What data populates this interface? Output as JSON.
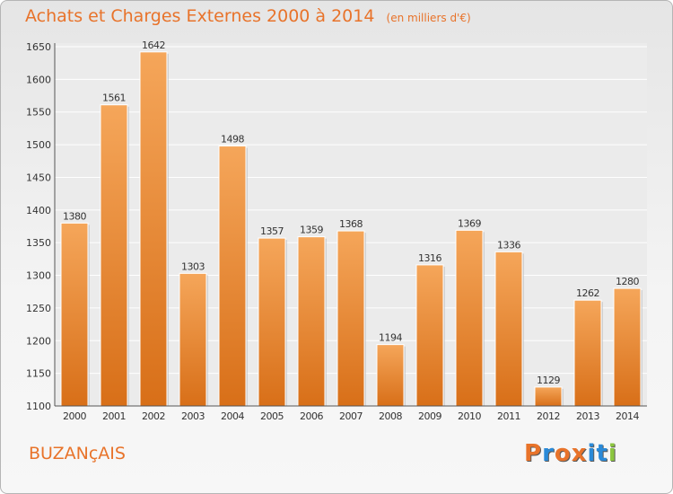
{
  "header": {
    "title": "Achats et Charges Externes 2000 à 2014",
    "unit": "(en milliers d'€)"
  },
  "footer": {
    "commune": "BUZANçAIS",
    "logo": "Proxiti"
  },
  "colors": {
    "accent": "#e8732a",
    "bar_top": "#f5a65a",
    "bar_bottom": "#d86f18",
    "logo_letters": [
      "#e8732a",
      "#2a8ad8",
      "#e8732a",
      "#e8732a",
      "#2a8ad8",
      "#2a8ad8",
      "#8cc63f"
    ]
  },
  "chart_data": {
    "type": "bar",
    "title": "Achats et Charges Externes 2000 à 2014",
    "subtitle": "(en milliers d'€)",
    "categories": [
      "2000",
      "2001",
      "2002",
      "2003",
      "2004",
      "2005",
      "2006",
      "2007",
      "2008",
      "2009",
      "2010",
      "2011",
      "2012",
      "2013",
      "2014"
    ],
    "values": [
      1380,
      1561,
      1642,
      1303,
      1498,
      1357,
      1359,
      1368,
      1194,
      1316,
      1369,
      1336,
      1129,
      1262,
      1280
    ],
    "ylim": [
      1100,
      1650
    ],
    "yticks": [
      1100,
      1150,
      1200,
      1250,
      1300,
      1350,
      1400,
      1450,
      1500,
      1550,
      1600,
      1650
    ],
    "grid": true,
    "data_labels": true,
    "legend": "none"
  }
}
